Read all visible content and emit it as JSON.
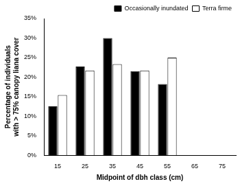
{
  "chart_data": {
    "type": "bar",
    "xlabel": "Midpoint of dbh class (cm)",
    "ylabel": "Percentage of individuals with > 75% canopy liana cover",
    "categories": [
      15,
      25,
      35,
      45,
      55,
      65,
      75
    ],
    "series": [
      {
        "name": "Occasionally inundated",
        "color": "#000000",
        "values": [
          12.5,
          22.7,
          30,
          21.5,
          18.2,
          null,
          null
        ]
      },
      {
        "name": "Terra firme",
        "color": "#ffffff",
        "values": [
          15.4,
          21.7,
          23.3,
          21.7,
          25,
          null,
          null
        ]
      }
    ],
    "ylim": [
      0,
      35
    ],
    "yticks": [
      {
        "value": 0,
        "label": "0%"
      },
      {
        "value": 5,
        "label": "5%"
      },
      {
        "value": 10,
        "label": "10%"
      },
      {
        "value": 15,
        "label": "15%"
      },
      {
        "value": 20,
        "label": "20%"
      },
      {
        "value": 25,
        "label": "25%"
      },
      {
        "value": 30,
        "label": "30%"
      },
      {
        "value": 35,
        "label": "35%"
      }
    ],
    "grid": false,
    "legend": "upper right"
  }
}
